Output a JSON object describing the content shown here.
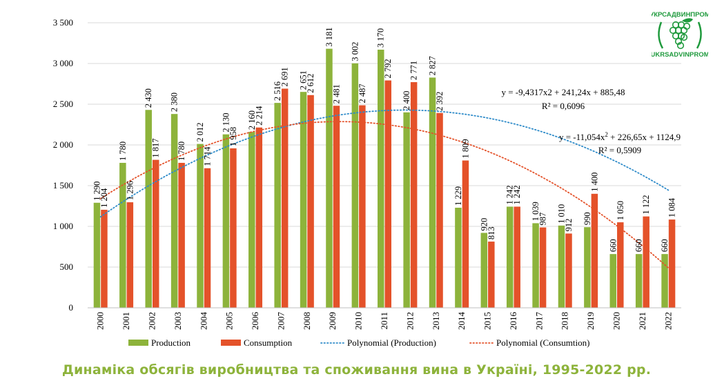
{
  "chart_data": {
    "type": "bar",
    "categories": [
      "2000",
      "2001",
      "2002",
      "2003",
      "2004",
      "2005",
      "2006",
      "2007",
      "2008",
      "2009",
      "2010",
      "2011",
      "2012",
      "2013",
      "2014",
      "2015",
      "2016",
      "2017",
      "2018",
      "2019",
      "2020",
      "2021",
      "2022"
    ],
    "series": [
      {
        "name": "Production",
        "color": "#8db33b",
        "values": [
          1290,
          1780,
          2430,
          2380,
          2012,
          2130,
          2160,
          2516,
          2651,
          3181,
          3002,
          3170,
          2400,
          2827,
          1229,
          920,
          1242,
          1039,
          1010,
          990,
          660,
          660,
          660
        ],
        "labels": [
          "1 290",
          "1 780",
          "2 430",
          "2 380",
          "2 012",
          "2 130",
          "2 160",
          "2 516",
          "2 651",
          "3 181",
          "3 002",
          "3 170",
          "2 400",
          "2 827",
          "1 229",
          "920",
          "1 242",
          "1 039",
          "1 010",
          "990",
          "660",
          "660",
          "660"
        ]
      },
      {
        "name": "Consumption",
        "color": "#e4522a",
        "values": [
          1204,
          1296,
          1817,
          1780,
          1714,
          1958,
          2214,
          2691,
          2612,
          2481,
          2487,
          2792,
          2771,
          2392,
          1809,
          813,
          1242,
          987,
          912,
          1400,
          1050,
          1122,
          1084
        ],
        "labels": [
          "1 204",
          "1 296",
          "1 817",
          "1 780",
          "1 714",
          "1 958",
          "2 214",
          "2 691",
          "2 612",
          "2 481",
          "2 487",
          "2 792",
          "2 771",
          "2 392",
          "1 809",
          "813",
          "1 242",
          "987",
          "912",
          "1 400",
          "1 050",
          "1 122",
          "1 084"
        ]
      }
    ],
    "trendlines": [
      {
        "name": "Polynomial (Production)",
        "color": "#2e8bc9",
        "coef": [
          -9.4317,
          241.24,
          885.48
        ],
        "equation": "y = -9,4317x2 + 241,24x + 885,48",
        "r2": "R² = 0,6096"
      },
      {
        "name": "Polynomial (Consumtion)",
        "color": "#e4522a",
        "coef": [
          -11.054,
          226.65,
          1124.9
        ],
        "equation_parts": [
          "y = -11,054x",
          "2",
          " + 226,65x + 1124,9"
        ],
        "r2": "R² = 0,5909"
      }
    ],
    "yticks": [
      "0",
      "500",
      "1 000",
      "1 500",
      "2 000",
      "2 500",
      "3 000",
      "3 500"
    ],
    "ylim": [
      0,
      3500
    ],
    "grid": true,
    "legend_position": "bottom",
    "title": "Динаміка обсягів виробництва та споживання вина в Україні, 1995-2022 рр."
  },
  "logo": {
    "top_text": "УКРСАДВИНПРОМ",
    "bottom_text": "UKRSADVINPROM",
    "color": "#1f9a3d"
  },
  "caption_color": "#8db33b"
}
